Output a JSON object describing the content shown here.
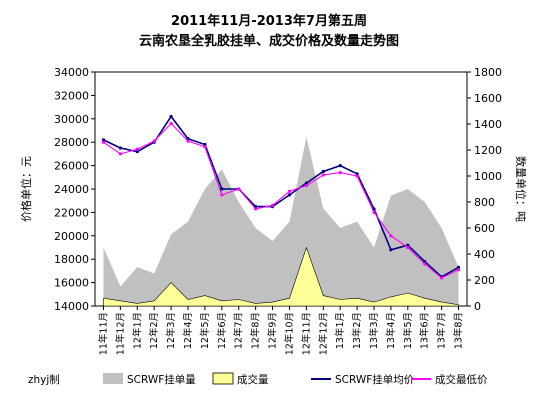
{
  "chart_data": {
    "type": "line",
    "title": "2011年11月-2013年7月第五周",
    "subtitle": "云南农垦全乳胶挂单、成交价格及数量走势图",
    "ylabel_left": "价格单位：元",
    "ylabel_right": "数量单位：吨",
    "credit": "zhyj制",
    "ylim_left": [
      14000,
      34000
    ],
    "ylim_right": [
      0,
      1800
    ],
    "yticks_left": [
      "14000",
      "16000",
      "18000",
      "20000",
      "22000",
      "24000",
      "26000",
      "28000",
      "30000",
      "32000",
      "34000"
    ],
    "yticks_right": [
      "0",
      "200",
      "400",
      "600",
      "800",
      "1000",
      "1200",
      "1400",
      "1600",
      "1800"
    ],
    "categories": [
      "11年11月",
      "11年12月",
      "12年1月",
      "12年2月",
      "12年3月",
      "12年4月",
      "12年5月",
      "12年6月",
      "12年7月",
      "12年8月",
      "12年9月",
      "12年10月",
      "12年11月",
      "12年12月",
      "13年1月",
      "13年2月",
      "13年3月",
      "13年4月",
      "13年5月",
      "13年6月",
      "13年7月",
      "13年8月"
    ],
    "series": [
      {
        "name": "SCRWF挂单量",
        "type": "area",
        "axis": "right",
        "color": "#c0c0c0",
        "values": [
          450,
          150,
          300,
          250,
          550,
          650,
          900,
          1050,
          800,
          600,
          500,
          650,
          1300,
          750,
          600,
          650,
          450,
          850,
          900,
          800,
          600,
          300
        ]
      },
      {
        "name": "成交量",
        "type": "area",
        "axis": "right",
        "color": "#ffff99",
        "values": [
          60,
          40,
          20,
          40,
          180,
          50,
          80,
          40,
          50,
          20,
          30,
          60,
          450,
          80,
          50,
          60,
          30,
          70,
          100,
          60,
          30,
          10
        ]
      },
      {
        "name": "SCRWF挂单均价",
        "type": "line",
        "axis": "left",
        "color": "#000080",
        "values": [
          28200,
          27500,
          27200,
          28000,
          30200,
          28300,
          27800,
          24000,
          24000,
          22500,
          22500,
          23500,
          24500,
          25500,
          26000,
          25300,
          22300,
          18800,
          19200,
          17800,
          16500,
          17300
        ]
      },
      {
        "name": "成交最低价",
        "type": "line",
        "axis": "left",
        "color": "#ff00ff",
        "values": [
          28000,
          27000,
          27400,
          28100,
          29600,
          28100,
          27600,
          23500,
          24000,
          22300,
          22600,
          23800,
          24300,
          25200,
          25400,
          25100,
          22000,
          20000,
          19000,
          17600,
          16400,
          17100
        ]
      }
    ],
    "grid": false,
    "legend_position": "bottom"
  }
}
